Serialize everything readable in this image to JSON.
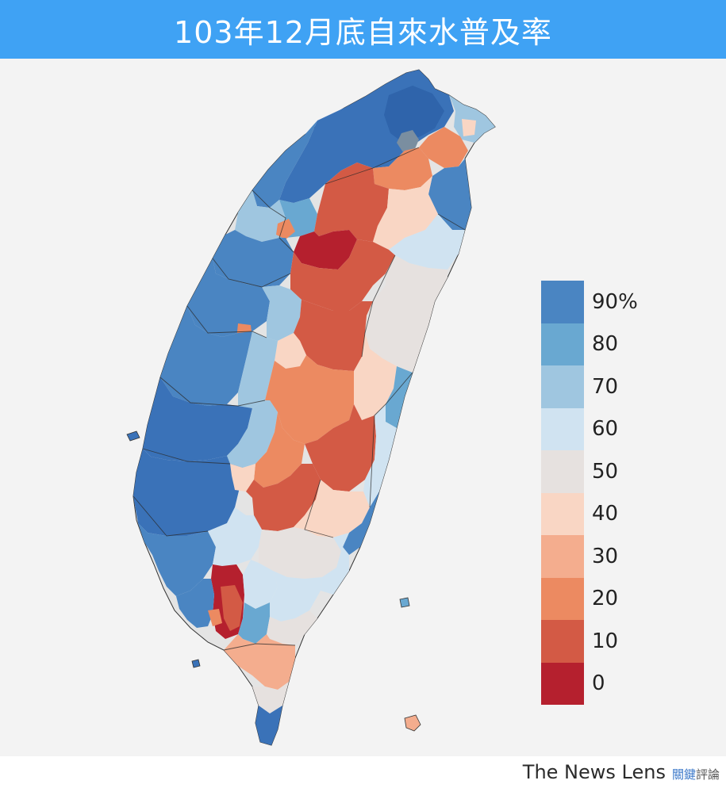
{
  "title": "103年12月底自來水普及率",
  "legend": {
    "items": [
      {
        "label": "90%",
        "color": "#4a85c2"
      },
      {
        "label": "80",
        "color": "#69a8d1"
      },
      {
        "label": "70",
        "color": "#9fc6e0"
      },
      {
        "label": "60",
        "color": "#d0e3f1"
      },
      {
        "label": "50",
        "color": "#e6e1df"
      },
      {
        "label": "40",
        "color": "#f9d6c4"
      },
      {
        "label": "30",
        "color": "#f4ad8e"
      },
      {
        "label": "20",
        "color": "#ec8a61"
      },
      {
        "label": "10",
        "color": "#d35a45"
      },
      {
        "label": "0",
        "color": "#b5202e"
      }
    ]
  },
  "footer": {
    "brand_en": "The News Lens",
    "brand_zh_a": "關鍵",
    "brand_zh_b": "評論"
  }
}
